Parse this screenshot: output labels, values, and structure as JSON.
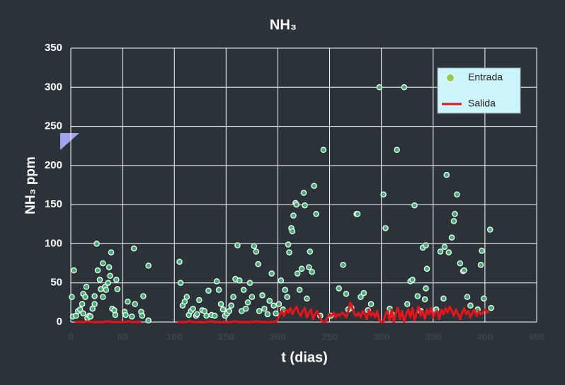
{
  "chart_data": {
    "type": "scatter",
    "title": "NH₃",
    "xlabel": "t (dias)",
    "ylabel": "NH₃ ppm",
    "xlim": [
      0,
      450
    ],
    "xticks": [
      0,
      50,
      100,
      150,
      200,
      250,
      300,
      350,
      400,
      450
    ],
    "ylim": [
      0,
      350
    ],
    "yticks": [
      0,
      50,
      100,
      150,
      200,
      250,
      300,
      350
    ],
    "grid": true,
    "legend": "upper right",
    "series": [
      {
        "name": "Entrada",
        "kind": "scatter",
        "color": "#3cb371",
        "x": [
          1,
          3,
          2,
          5,
          7,
          9,
          11,
          12,
          14,
          15,
          12,
          16,
          18,
          19,
          21,
          23,
          23,
          25,
          26,
          28,
          29,
          31,
          31,
          33,
          34,
          36,
          37,
          38,
          39,
          40,
          42,
          44,
          45,
          43,
          52,
          53,
          55,
          59,
          61,
          62,
          68,
          69,
          70,
          75,
          75,
          105,
          106,
          108,
          110,
          112,
          114,
          116,
          118,
          121,
          122,
          124,
          127,
          129,
          131,
          133,
          136,
          139,
          141,
          143,
          145,
          147,
          149,
          151,
          153,
          155,
          157,
          159,
          161,
          163,
          165,
          167,
          169,
          171,
          173,
          175,
          177,
          179,
          181,
          182,
          185,
          187,
          190,
          192,
          194,
          196,
          198,
          201,
          203,
          205,
          207,
          209,
          210,
          211,
          213,
          214,
          215,
          217,
          218,
          219,
          221,
          223,
          225,
          226,
          228,
          230,
          231,
          233,
          235,
          237,
          241,
          244,
          251,
          259,
          263,
          266,
          268,
          271,
          276,
          277,
          280,
          283,
          287,
          290,
          298,
          302,
          304,
          308,
          310,
          315,
          322,
          325,
          328,
          330,
          332,
          335,
          338,
          340,
          342,
          343,
          343,
          344,
          353,
          357,
          360,
          361,
          363,
          365,
          368,
          370,
          371,
          373,
          376,
          379,
          380,
          383,
          386,
          393,
          396,
          397,
          399,
          405,
          406
        ],
        "values": [
          32,
          66,
          7,
          8,
          14,
          16,
          23,
          36,
          32,
          45,
          11,
          5,
          8,
          7,
          17,
          23,
          33,
          100,
          66,
          54,
          42,
          32,
          75,
          45,
          41,
          50,
          70,
          59,
          89,
          17,
          15,
          54,
          42,
          9,
          13,
          9,
          26,
          7,
          94,
          23,
          13,
          8,
          33,
          72,
          2,
          77,
          50,
          21,
          26,
          32,
          9,
          14,
          17,
          8,
          10,
          28,
          15,
          14,
          8,
          40,
          9,
          8,
          52,
          41,
          23,
          16,
          8,
          11,
          14,
          21,
          32,
          55,
          98,
          53,
          14,
          41,
          17,
          25,
          50,
          32,
          97,
          90,
          74,
          14,
          34,
          17,
          10,
          27,
          62,
          21,
          11,
          23,
          53,
          16,
          41,
          32,
          99,
          89,
          120,
          116,
          136,
          152,
          150,
          62,
          41,
          68,
          165,
          149,
          30,
          70,
          90,
          64,
          174,
          138,
          8,
          220,
          8,
          43,
          73,
          36,
          16,
          18,
          138,
          138,
          32,
          37,
          15,
          23,
          300,
          163,
          120,
          17,
          10,
          220,
          300,
          23,
          52,
          54,
          149,
          33,
          14,
          95,
          29,
          98,
          43,
          68,
          16,
          90,
          30,
          96,
          188,
          89,
          108,
          129,
          138,
          163,
          75,
          65,
          66,
          32,
          21,
          16,
          73,
          91,
          30,
          118,
          18
        ]
      },
      {
        "name": "Salida",
        "kind": "line",
        "color": "#e8141b",
        "x": [
          4,
          8,
          12,
          16,
          20,
          24,
          28,
          32,
          36,
          40,
          44,
          48,
          52,
          56,
          60,
          64,
          68,
          85,
          103,
          107,
          111,
          115,
          119,
          123,
          127,
          131,
          135,
          139,
          143,
          147,
          151,
          155,
          159,
          163,
          167,
          171,
          175,
          179,
          183,
          187,
          191,
          195,
          199,
          202,
          204,
          206,
          208,
          210,
          212,
          214,
          216,
          218,
          220,
          222,
          224,
          226,
          228,
          230,
          232,
          234,
          236,
          238,
          240,
          242,
          244,
          246,
          248,
          250,
          252,
          254,
          256,
          258,
          260,
          262,
          264,
          266,
          268,
          270,
          272,
          274,
          276,
          278,
          280,
          282,
          284,
          286,
          288,
          290,
          292,
          294,
          296,
          298,
          300,
          302,
          304,
          306,
          308,
          310,
          312,
          314,
          316,
          318,
          320,
          322,
          324,
          326,
          328,
          330,
          332,
          334,
          336,
          338,
          340,
          342,
          344,
          346,
          348,
          350,
          352,
          354,
          356,
          358,
          360,
          362,
          364,
          366,
          368,
          370,
          372,
          374,
          376,
          378,
          380,
          382,
          384,
          386,
          388,
          390,
          392,
          394,
          396,
          398,
          400,
          402,
          404
        ],
        "values": [
          0,
          0,
          0,
          1,
          0,
          0,
          0,
          0,
          1,
          0,
          0,
          0,
          0,
          1,
          0,
          0,
          0,
          null,
          0,
          0,
          0,
          1,
          0,
          0,
          0,
          0,
          1,
          0,
          0,
          0,
          0,
          0,
          1,
          0,
          0,
          0,
          0,
          1,
          0,
          0,
          0,
          0,
          1,
          10,
          14,
          8,
          16,
          12,
          18,
          10,
          15,
          20,
          12,
          8,
          14,
          18,
          6,
          12,
          16,
          4,
          10,
          14,
          8,
          2,
          0,
          0,
          6,
          10,
          8,
          12,
          6,
          10,
          8,
          12,
          10,
          6,
          14,
          25,
          18,
          10,
          8,
          12,
          6,
          14,
          10,
          4,
          16,
          8,
          12,
          6,
          14,
          2,
          0,
          0,
          10,
          14,
          2,
          16,
          0,
          12,
          18,
          4,
          14,
          0,
          10,
          16,
          6,
          18,
          2,
          12,
          20,
          8,
          14,
          4,
          16,
          10,
          18,
          6,
          12,
          14,
          4,
          16,
          10,
          18,
          12,
          20,
          14,
          8,
          16,
          10,
          4,
          12,
          18,
          10,
          14,
          6,
          12,
          16,
          8,
          14,
          10,
          12,
          16,
          12,
          14
        ]
      }
    ]
  }
}
